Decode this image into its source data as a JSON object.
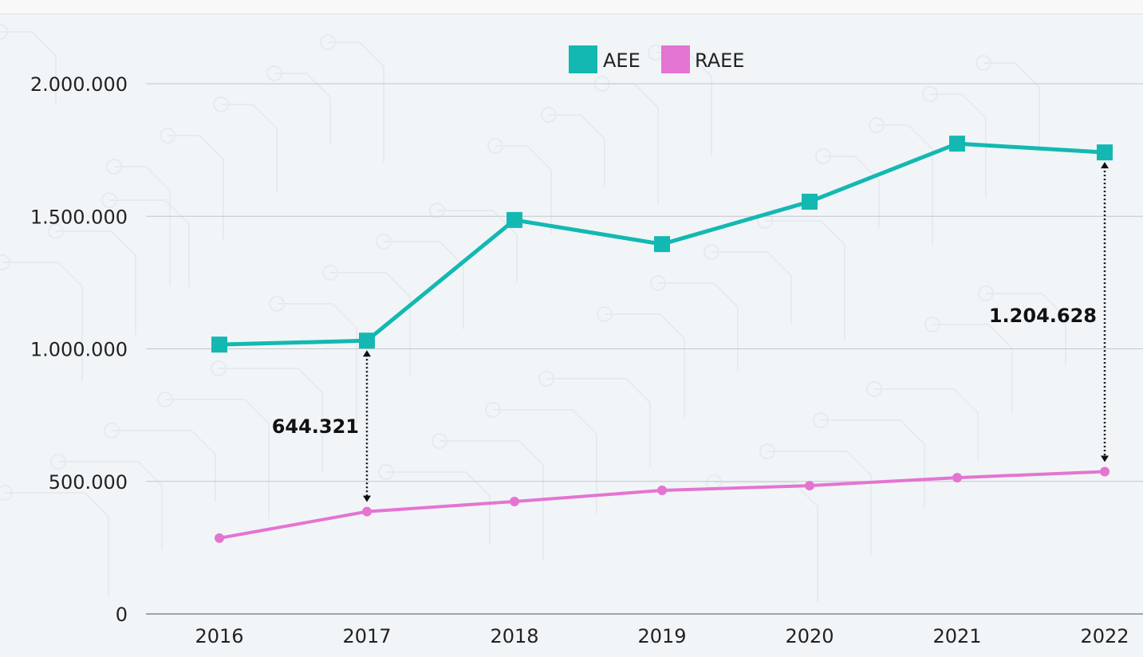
{
  "chart_data": {
    "type": "line",
    "categories": [
      "2016",
      "2017",
      "2018",
      "2019",
      "2020",
      "2021",
      "2022"
    ],
    "series": [
      {
        "name": "AEE",
        "color": "#14b8b2",
        "marker": "square",
        "values": [
          1016000,
          1031000,
          1486000,
          1395000,
          1555000,
          1774000,
          1741000
        ]
      },
      {
        "name": "RAEE",
        "color": "#e474d2",
        "marker": "circle",
        "values": [
          286000,
          386000,
          424000,
          466000,
          484000,
          514000,
          537000
        ]
      }
    ],
    "ylim": [
      0,
      2000000
    ],
    "yticks": [
      0,
      500000,
      1000000,
      1500000,
      2000000
    ],
    "ytick_labels": [
      "0",
      "500.000",
      "1.000.000",
      "1.500.000",
      "2.000.000"
    ],
    "grid": "horizontal",
    "legend_position": "top-center",
    "annotations": [
      {
        "category": "2017",
        "label": "644.321",
        "side": "left"
      },
      {
        "category": "2022",
        "label": "1.204.628",
        "side": "left"
      }
    ],
    "title": "",
    "xlabel": "",
    "ylabel": ""
  }
}
